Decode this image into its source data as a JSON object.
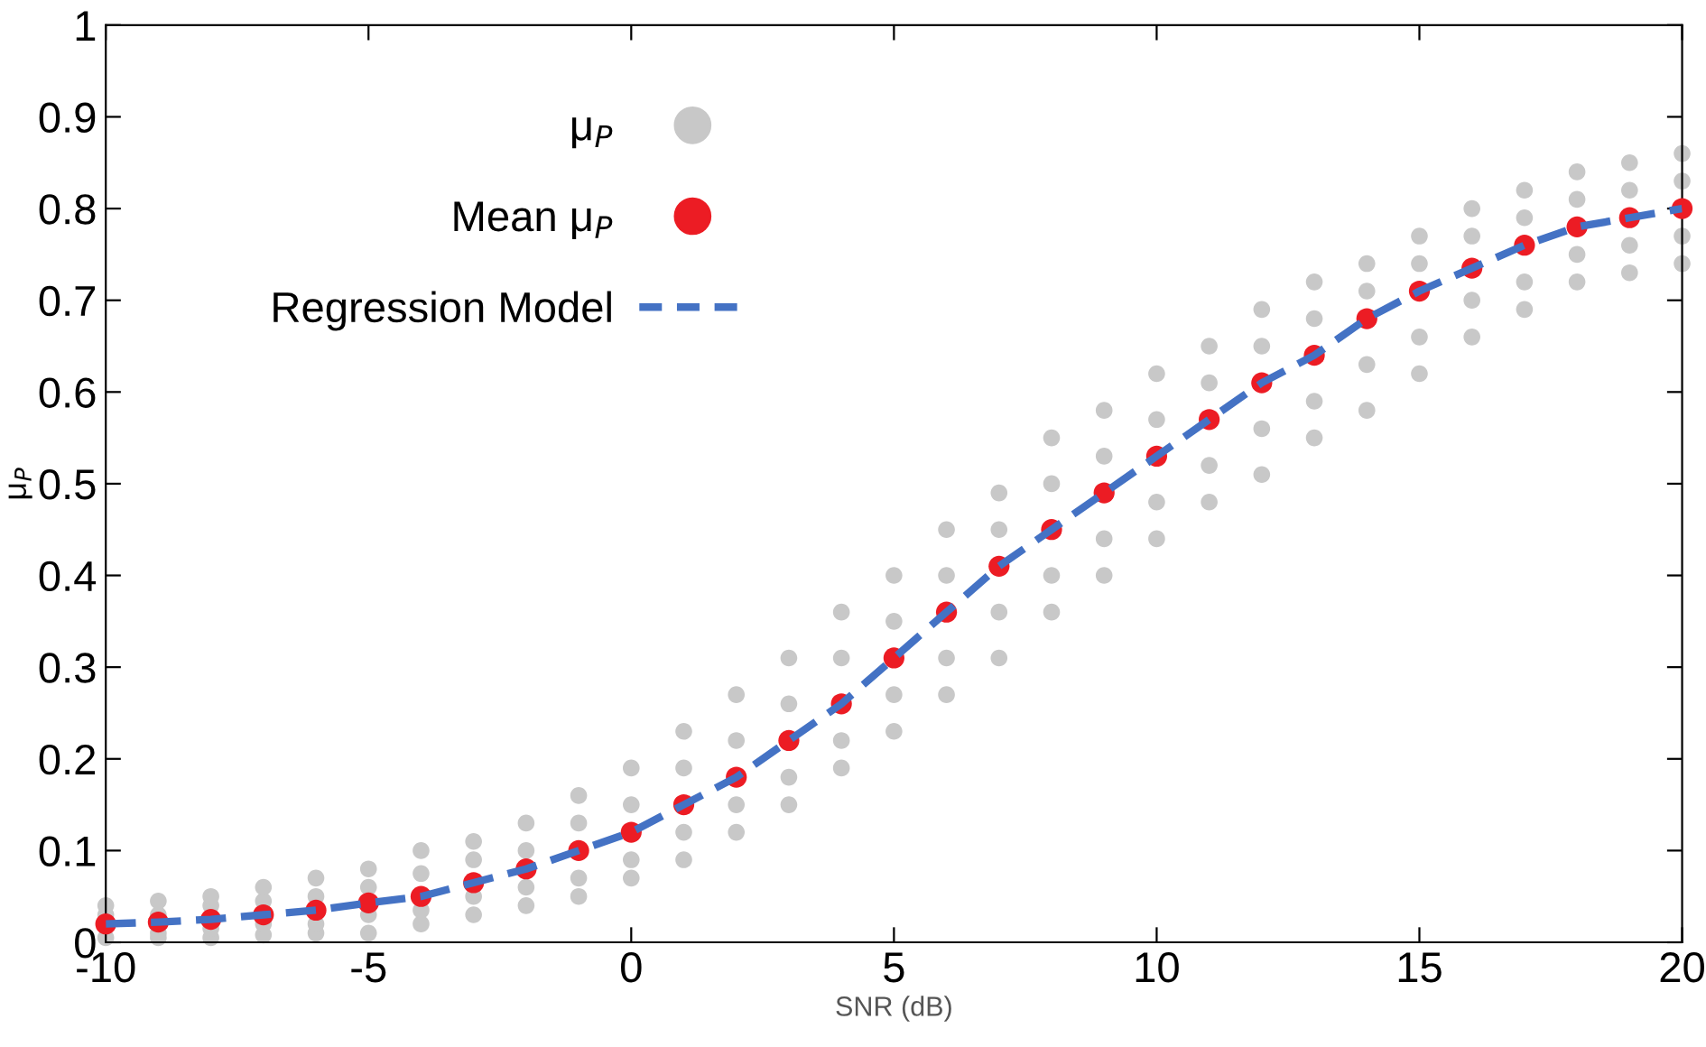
{
  "chart_data": {
    "type": "scatter",
    "xlabel": "SNR (dB)",
    "ylabel": "μ$_{P}$",
    "xlim": [
      -10,
      20
    ],
    "ylim": [
      0,
      1
    ],
    "xticks": [
      -10,
      -5,
      0,
      5,
      10,
      15,
      20
    ],
    "yticks": [
      0,
      0.1,
      0.2,
      0.3,
      0.4,
      0.5,
      0.6,
      0.7,
      0.8,
      0.9,
      1
    ],
    "grid": false,
    "legend": "top left",
    "series": [
      {
        "name": "μ$_{P}$",
        "marker": "circle",
        "color": "#c8c8c8",
        "x": [
          -10,
          -10,
          -10,
          -9,
          -9,
          -9,
          -9,
          -8,
          -8,
          -8,
          -8,
          -7,
          -7,
          -7,
          -7,
          -6,
          -6,
          -6,
          -6,
          -5,
          -5,
          -5,
          -5,
          -4,
          -4,
          -4,
          -4,
          -3,
          -3,
          -3,
          -3,
          -2,
          -2,
          -2,
          -2,
          -1,
          -1,
          -1,
          -1,
          0,
          0,
          0,
          0,
          1,
          1,
          1,
          1,
          2,
          2,
          2,
          2,
          3,
          3,
          3,
          3,
          4,
          4,
          4,
          4,
          5,
          5,
          5,
          5,
          6,
          6,
          6,
          6,
          7,
          7,
          7,
          7,
          8,
          8,
          8,
          8,
          9,
          9,
          9,
          9,
          10,
          10,
          10,
          10,
          11,
          11,
          11,
          11,
          12,
          12,
          12,
          12,
          13,
          13,
          13,
          13,
          14,
          14,
          14,
          14,
          15,
          15,
          15,
          15,
          16,
          16,
          16,
          16,
          17,
          17,
          17,
          17,
          18,
          18,
          18,
          18,
          19,
          19,
          19,
          19,
          20,
          20,
          20,
          20
        ],
        "values": [
          0.005,
          0.03,
          0.04,
          0.005,
          0.01,
          0.03,
          0.045,
          0.005,
          0.015,
          0.04,
          0.05,
          0.008,
          0.02,
          0.045,
          0.06,
          0.01,
          0.02,
          0.05,
          0.07,
          0.01,
          0.03,
          0.06,
          0.08,
          0.02,
          0.035,
          0.075,
          0.1,
          0.03,
          0.05,
          0.09,
          0.11,
          0.04,
          0.06,
          0.1,
          0.13,
          0.05,
          0.07,
          0.13,
          0.16,
          0.07,
          0.09,
          0.15,
          0.19,
          0.09,
          0.12,
          0.19,
          0.23,
          0.12,
          0.15,
          0.22,
          0.27,
          0.15,
          0.18,
          0.26,
          0.31,
          0.19,
          0.22,
          0.31,
          0.36,
          0.23,
          0.27,
          0.35,
          0.4,
          0.27,
          0.31,
          0.4,
          0.45,
          0.31,
          0.36,
          0.45,
          0.49,
          0.36,
          0.4,
          0.5,
          0.55,
          0.4,
          0.44,
          0.53,
          0.58,
          0.44,
          0.48,
          0.57,
          0.62,
          0.48,
          0.52,
          0.61,
          0.65,
          0.51,
          0.56,
          0.65,
          0.69,
          0.55,
          0.59,
          0.68,
          0.72,
          0.58,
          0.63,
          0.71,
          0.74,
          0.62,
          0.66,
          0.74,
          0.77,
          0.66,
          0.7,
          0.77,
          0.8,
          0.69,
          0.72,
          0.79,
          0.82,
          0.72,
          0.75,
          0.81,
          0.84,
          0.73,
          0.76,
          0.82,
          0.85,
          0.74,
          0.77,
          0.83,
          0.86
        ]
      },
      {
        "name": "Mean μ$_{P}$",
        "type": "scatter",
        "marker": "circle",
        "color": "#ec1c24",
        "x": [
          -10,
          -9,
          -8,
          -7,
          -6,
          -5,
          -4,
          -3,
          -2,
          -1,
          0,
          1,
          2,
          3,
          4,
          5,
          6,
          7,
          8,
          9,
          10,
          11,
          12,
          13,
          14,
          15,
          16,
          17,
          18,
          19,
          20
        ],
        "values": [
          0.02,
          0.022,
          0.025,
          0.03,
          0.035,
          0.043,
          0.05,
          0.065,
          0.08,
          0.1,
          0.12,
          0.15,
          0.18,
          0.22,
          0.26,
          0.31,
          0.36,
          0.41,
          0.45,
          0.49,
          0.53,
          0.57,
          0.61,
          0.64,
          0.68,
          0.71,
          0.735,
          0.76,
          0.78,
          0.79,
          0.8
        ]
      },
      {
        "name": "Regression Model",
        "type": "line",
        "line_style": "dashed",
        "color": "#4472c4",
        "x": [
          -10,
          -9,
          -8,
          -7,
          -6,
          -5,
          -4,
          -3,
          -2,
          -1,
          0,
          1,
          2,
          3,
          4,
          5,
          6,
          7,
          8,
          9,
          10,
          11,
          12,
          13,
          14,
          15,
          16,
          17,
          18,
          19,
          20
        ],
        "values": [
          0.02,
          0.022,
          0.025,
          0.03,
          0.035,
          0.043,
          0.05,
          0.065,
          0.08,
          0.1,
          0.12,
          0.15,
          0.18,
          0.22,
          0.26,
          0.31,
          0.36,
          0.41,
          0.45,
          0.49,
          0.53,
          0.57,
          0.61,
          0.64,
          0.68,
          0.71,
          0.735,
          0.76,
          0.78,
          0.79,
          0.8
        ]
      }
    ]
  }
}
